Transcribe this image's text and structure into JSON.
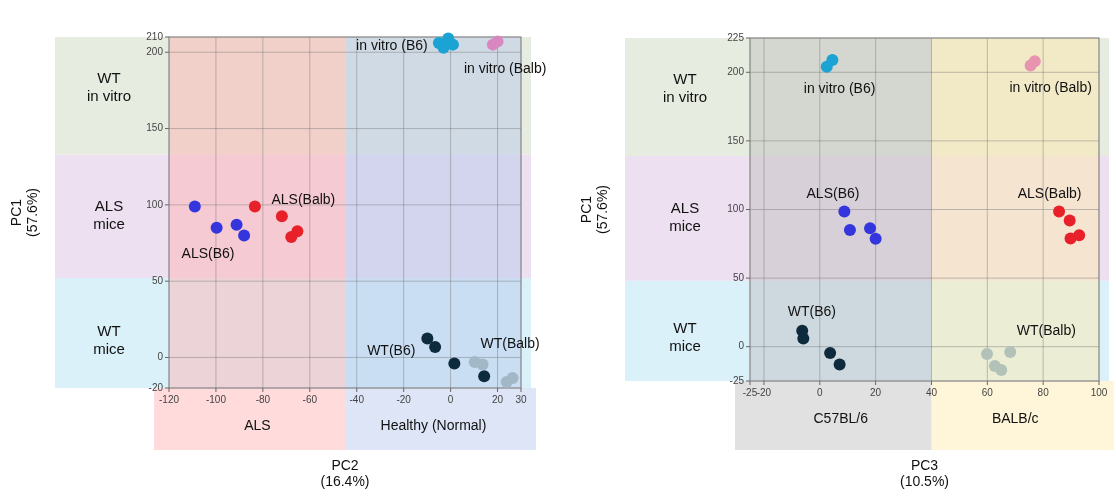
{
  "chart_data": [
    {
      "type": "scatter",
      "xlabel": "PC2\n(16.4%)",
      "ylabel": "PC1\n(57.6%)",
      "xlim": [
        -120,
        30
      ],
      "ylim": [
        -20,
        210
      ],
      "xticks": [
        -120,
        -100,
        -80,
        -60,
        -40,
        -20,
        0,
        20,
        30
      ],
      "yticks": [
        -20,
        0,
        50,
        100,
        150,
        200,
        210
      ],
      "grid": true,
      "marker": "circle",
      "bands": [
        {
          "axis": "y",
          "from": -20,
          "to": 52,
          "label": "WT\nmice",
          "color": "#d3eef9"
        },
        {
          "axis": "y",
          "from": 52,
          "to": 133,
          "label": "ALS\nmice",
          "color": "#eadcee"
        },
        {
          "axis": "y",
          "from": 133,
          "to": 210,
          "label": "WT\nin vitro",
          "color": "#e3e9dc"
        },
        {
          "axis": "x",
          "from": -120,
          "to": -44.6,
          "label": "ALS",
          "color": "#ffb0b0"
        },
        {
          "axis": "x",
          "from": -44.6,
          "to": 30,
          "label": "Healthy (Normal)",
          "color": "#b4c6ea"
        }
      ],
      "series": [
        {
          "name": "in vitro (B6)",
          "color": "#1ba3d4",
          "x": [
            -5,
            -1,
            1,
            -3
          ],
          "values": [
            206,
            209,
            205,
            203
          ]
        },
        {
          "name": "in vitro (Balb)",
          "color": "#d987c0",
          "x": [
            18,
            20
          ],
          "values": [
            205,
            207
          ]
        },
        {
          "name": "ALS(Balb)",
          "color": "#e8202a",
          "x": [
            -83.4,
            -71.9,
            -67.9,
            -65.3
          ],
          "values": [
            99,
            92.6,
            79,
            82.7
          ]
        },
        {
          "name": "ALS(B6)",
          "color": "#3535dd",
          "x": [
            -109,
            -99.7,
            -91.2,
            -88
          ],
          "values": [
            99,
            85,
            87,
            80
          ]
        },
        {
          "name": "WT(B6)",
          "color": "#0e2a3d",
          "x": [
            -9.9,
            -6.6,
            1.6,
            14.3
          ],
          "values": [
            12.5,
            6.8,
            -4,
            -12.3
          ]
        },
        {
          "name": "WT(Balb)",
          "color": "#a2b8c6",
          "x": [
            10.3,
            13.6,
            23.9,
            26.4
          ],
          "values": [
            -3,
            -4.6,
            -16,
            -13.4
          ]
        }
      ]
    },
    {
      "type": "scatter",
      "xlabel": "PC3\n(10.5%)",
      "ylabel": "PC1\n(57.6%)",
      "xlim": [
        -25,
        100
      ],
      "ylim": [
        -25,
        225
      ],
      "xticks": [
        -25,
        -20,
        0,
        20,
        40,
        60,
        80,
        100
      ],
      "yticks": [
        -25,
        0,
        50,
        100,
        150,
        200,
        225
      ],
      "grid": true,
      "marker": "circle",
      "bands": [
        {
          "axis": "y",
          "from": -25,
          "to": 48,
          "label": "WT\nmice",
          "color": "#d3eef9"
        },
        {
          "axis": "y",
          "from": 48,
          "to": 139,
          "label": "ALS\nmice",
          "color": "#eadcee"
        },
        {
          "axis": "y",
          "from": 139,
          "to": 225,
          "label": "WT\nin vitro",
          "color": "#e3e9dc"
        },
        {
          "axis": "x",
          "from": -25,
          "to": 40,
          "label": "C57BL/6",
          "color": "#bdbdbd"
        },
        {
          "axis": "x",
          "from": 40,
          "to": 100,
          "label": "BALB/c",
          "color": "#ffe9a8"
        }
      ],
      "series": [
        {
          "name": "in vitro (B6)",
          "color": "#1ba3d4",
          "x": [
            2.5,
            4.5
          ],
          "values": [
            204,
            209
          ]
        },
        {
          "name": "in vitro (Balb)",
          "color": "#e893b0",
          "x": [
            75.5,
            77
          ],
          "values": [
            205,
            208
          ]
        },
        {
          "name": "ALS(Balb)",
          "color": "#e8202a",
          "x": [
            85.7,
            89.5,
            89.8,
            92.9
          ],
          "values": [
            98.5,
            92,
            78.9,
            81.3
          ]
        },
        {
          "name": "ALS(B6)",
          "color": "#3535dd",
          "x": [
            8.8,
            10.8,
            18,
            20
          ],
          "values": [
            98.5,
            85,
            86.4,
            78.7
          ]
        },
        {
          "name": "WT(B6)",
          "color": "#0e2a3d",
          "x": [
            -6.3,
            -5.9,
            3.7,
            7.1
          ],
          "values": [
            11.7,
            6,
            -4.6,
            -12.9
          ]
        },
        {
          "name": "WT(Balb)",
          "color": "#b3c2b8",
          "x": [
            59.9,
            68.2,
            62.7,
            65
          ],
          "values": [
            -5.3,
            -3.9,
            -14,
            -17
          ]
        }
      ]
    }
  ]
}
